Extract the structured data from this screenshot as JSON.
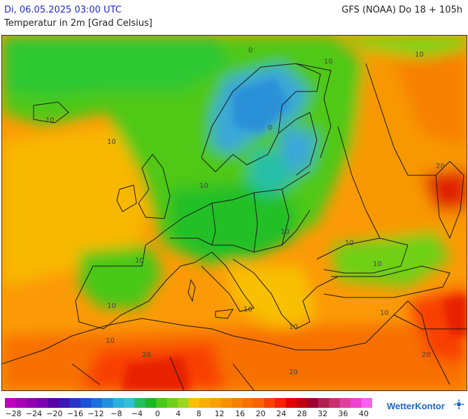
{
  "header": {
    "datetime": "Di, 06.05.2025 03:00 UTC",
    "model_run": "GFS (NOAA) Do 18 + 105h",
    "parameter": "Temperatur in 2m [Grad Celsius]"
  },
  "map": {
    "contour_labels": [
      "10",
      "10",
      "10",
      "10",
      "10",
      "10",
      "10",
      "10",
      "10",
      "0",
      "0",
      "10",
      "10",
      "10",
      "10",
      "20",
      "20",
      "20",
      "10",
      "20"
    ]
  },
  "legend": {
    "tick_labels": [
      "−28",
      "−24",
      "−20",
      "−16",
      "−12",
      "−8",
      "−4",
      "0",
      "4",
      "8",
      "12",
      "16",
      "20",
      "24",
      "28",
      "32",
      "36",
      "40"
    ],
    "colors": [
      "#c000c0",
      "#a800b8",
      "#9000b0",
      "#7a00b0",
      "#5800a8",
      "#3a18b8",
      "#2a36c8",
      "#1a52d8",
      "#1a70e0",
      "#2090e0",
      "#28b0e0",
      "#30c0d8",
      "#20c060",
      "#18b820",
      "#48c818",
      "#70d018",
      "#98d818",
      "#f8c000",
      "#f8b000",
      "#f8a000",
      "#f89000",
      "#f88000",
      "#f87000",
      "#f86000",
      "#f84000",
      "#f82000",
      "#e00000",
      "#c00010",
      "#a00030",
      "#b02050",
      "#c83070",
      "#e040a0",
      "#f040d0",
      "#f860f0"
    ],
    "color_range": [
      -28,
      40
    ]
  },
  "branding": {
    "logo_text": "WetterKontor"
  }
}
